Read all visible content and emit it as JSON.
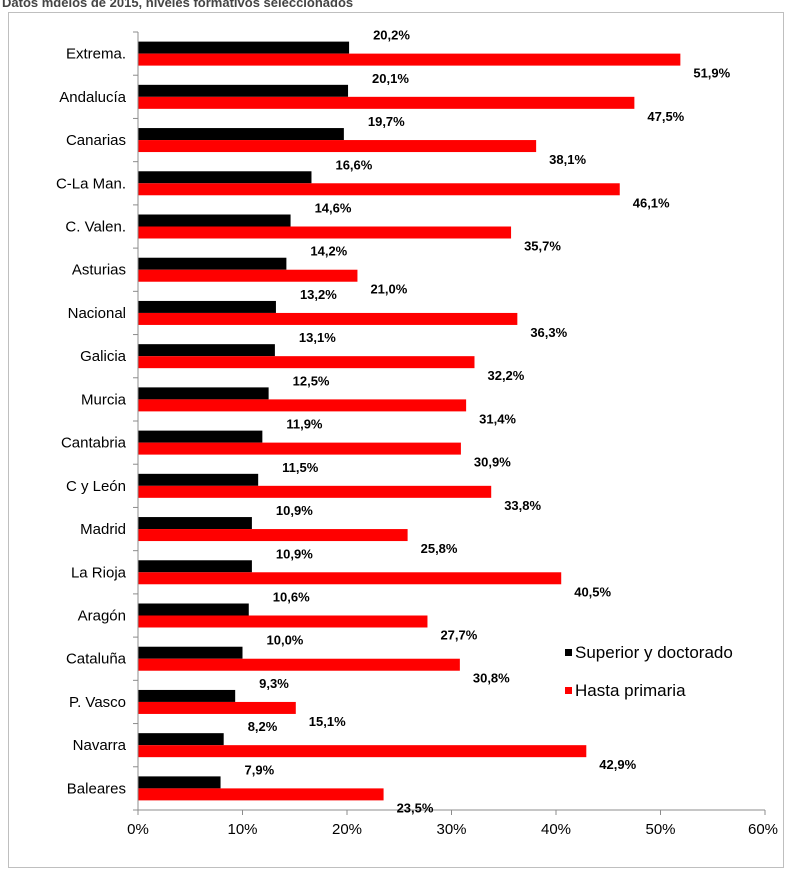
{
  "page": {
    "title": "Datos mdeios de 2015, niveles formativos seleccionados"
  },
  "colors": {
    "superior": "#000000",
    "primaria": "#ff0000",
    "axis": "#8c8c8c",
    "frame": "#bfbfbf"
  },
  "chart_data": {
    "type": "bar",
    "orientation": "horizontal",
    "categories": [
      "Extrema.",
      "Andalucía",
      "Canarias",
      "C-La Man.",
      "C. Valen.",
      "Asturias",
      "Nacional",
      "Galicia",
      "Murcia",
      "Cantabria",
      "C y León",
      "Madrid",
      "La Rioja",
      "Aragón",
      "Cataluña",
      "P. Vasco",
      "Navarra",
      "Baleares"
    ],
    "series": [
      {
        "name": "Superior y doctorado",
        "values": [
          20.2,
          20.1,
          19.7,
          16.6,
          14.6,
          14.2,
          13.2,
          13.1,
          12.5,
          11.9,
          11.5,
          10.9,
          10.9,
          10.6,
          10.0,
          9.3,
          8.2,
          7.9
        ],
        "labels": [
          "20,2%",
          "20,1%",
          "19,7%",
          "16,6%",
          "14,6%",
          "14,2%",
          "13,2%",
          "13,1%",
          "12,5%",
          "11,9%",
          "11,5%",
          "10,9%",
          "10,9%",
          "10,6%",
          "10,0%",
          "9,3%",
          "8,2%",
          "7,9%"
        ]
      },
      {
        "name": "Hasta primaria",
        "values": [
          51.9,
          47.5,
          38.1,
          46.1,
          35.7,
          21.0,
          36.3,
          32.2,
          31.4,
          30.9,
          33.8,
          25.8,
          40.5,
          27.7,
          30.8,
          15.1,
          42.9,
          23.5
        ],
        "labels": [
          "51,9%",
          "47,5%",
          "38,1%",
          "46,1%",
          "35,7%",
          "21,0%",
          "36,3%",
          "32,2%",
          "31,4%",
          "30,9%",
          "33,8%",
          "25,8%",
          "40,5%",
          "27,7%",
          "30,8%",
          "15,1%",
          "42,9%",
          "23,5%"
        ]
      }
    ],
    "xlim": [
      0,
      60
    ],
    "xticks": [
      "0%",
      "10%",
      "20%",
      "30%",
      "40%",
      "50%",
      "60%"
    ],
    "xlabel": "",
    "ylabel": "",
    "grid": false,
    "legend_position": "right"
  }
}
